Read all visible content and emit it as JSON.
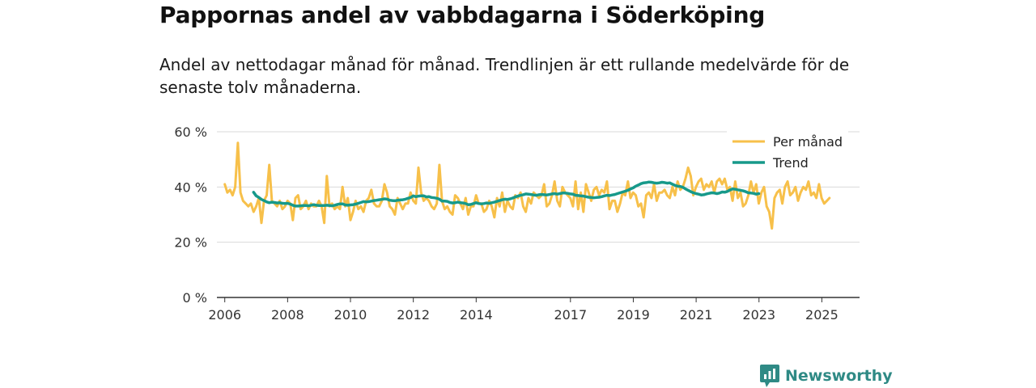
{
  "title": "Pappornas andel av vabbdagarna i Söderköping",
  "subtitle": "Andel av nettodagar månad för månad. Trendlinjen är ett rullande medelvärde för de senaste tolv månaderna.",
  "brand": "Newsworthy",
  "colors": {
    "monthly": "#f7c04a",
    "trend": "#17998a",
    "grid": "#d9d9d9",
    "axis": "#333333",
    "brand": "#2f8a85"
  },
  "chart_data": {
    "type": "line",
    "title": "Pappornas andel av vabbdagarna i Söderköping",
    "xlabel": "",
    "ylabel": "",
    "xlim": [
      2005.75,
      2026.2
    ],
    "ylim": [
      0,
      60
    ],
    "y_ticks": [
      0,
      20,
      40,
      60
    ],
    "y_tick_labels": [
      "0 %",
      "20 %",
      "40 %",
      "60 %"
    ],
    "x_ticks": [
      2006,
      2008,
      2010,
      2012,
      2014,
      2017,
      2019,
      2021,
      2023,
      2025
    ],
    "x_tick_labels": [
      "2006",
      "2008",
      "2010",
      "2012",
      "2014",
      "2017",
      "2019",
      "2021",
      "2023",
      "2025"
    ],
    "grid": true,
    "legend": "top-right",
    "series": [
      {
        "name": "Per månad",
        "start": 2006.0,
        "step": 0.0833,
        "values": [
          41,
          38,
          39,
          37,
          40,
          56,
          38,
          35,
          34,
          33,
          34,
          31,
          33,
          36,
          27,
          35,
          37,
          48,
          35,
          34,
          33,
          35,
          32,
          33,
          35,
          34,
          28,
          36,
          37,
          32,
          33,
          35,
          32,
          34,
          33,
          33,
          35,
          33,
          27,
          44,
          33,
          34,
          32,
          33,
          32,
          40,
          33,
          36,
          28,
          31,
          35,
          32,
          33,
          31,
          35,
          36,
          39,
          34,
          33,
          33,
          35,
          41,
          38,
          33,
          32,
          30,
          36,
          34,
          32,
          34,
          34,
          38,
          35,
          34,
          47,
          38,
          35,
          36,
          35,
          33,
          32,
          34,
          48,
          35,
          32,
          33,
          31,
          30,
          37,
          36,
          34,
          32,
          36,
          30,
          33,
          33,
          37,
          34,
          34,
          31,
          32,
          35,
          33,
          29,
          36,
          33,
          38,
          31,
          35,
          33,
          32,
          37,
          36,
          38,
          33,
          31,
          36,
          34,
          38,
          37,
          36,
          37,
          41,
          33,
          34,
          37,
          42,
          35,
          33,
          40,
          38,
          37,
          36,
          33,
          42,
          32,
          38,
          31,
          41,
          38,
          35,
          39,
          40,
          37,
          39,
          38,
          42,
          32,
          35,
          35,
          31,
          34,
          38,
          37,
          42,
          36,
          38,
          37,
          33,
          34,
          29,
          37,
          38,
          36,
          41,
          35,
          38,
          38,
          39,
          37,
          36,
          40,
          37,
          42,
          39,
          40,
          43,
          47,
          44,
          37,
          40,
          42,
          43,
          39,
          41,
          40,
          42,
          38,
          42,
          43,
          41,
          43,
          39,
          40,
          35,
          42,
          36,
          38,
          33,
          34,
          37,
          42,
          38,
          41,
          34,
          38,
          40,
          33,
          31,
          25,
          36,
          38,
          39,
          34,
          40,
          42,
          37,
          38,
          40,
          35,
          38,
          40,
          39,
          42,
          37,
          38,
          36,
          41,
          36,
          34,
          35,
          36
        ]
      },
      {
        "name": "Trend",
        "start": 2006.9167,
        "step": 0.0833,
        "values": [
          38.1,
          36.8,
          36.2,
          35.5,
          35.1,
          34.6,
          34.3,
          34.5,
          34.4,
          34.2,
          34.3,
          34.1,
          34.0,
          34.1,
          33.8,
          33.4,
          33.1,
          33.1,
          33.2,
          33.3,
          33.3,
          33.2,
          33.4,
          33.6,
          33.4,
          33.3,
          33.3,
          33.3,
          33.4,
          33.3,
          33.2,
          33.4,
          33.7,
          33.9,
          33.9,
          33.5,
          33.4,
          33.5,
          33.6,
          33.8,
          34.1,
          34.4,
          34.7,
          34.6,
          34.7,
          34.9,
          35.1,
          35.2,
          35.4,
          35.5,
          35.7,
          35.6,
          35.2,
          35.1,
          35.0,
          35.2,
          35.3,
          35.4,
          35.6,
          35.9,
          36.2,
          36.8,
          36.5,
          36.7,
          36.8,
          36.8,
          36.4,
          36.5,
          36.2,
          36.1,
          35.9,
          35.6,
          34.9,
          34.9,
          34.8,
          34.4,
          34.2,
          34.3,
          34.5,
          34.3,
          34.2,
          34.0,
          33.6,
          33.7,
          34.0,
          34.3,
          34.0,
          33.9,
          34.0,
          34.2,
          34.1,
          34.3,
          34.5,
          34.8,
          35.1,
          35.4,
          35.6,
          35.5,
          35.7,
          36.0,
          36.4,
          36.7,
          37.0,
          37.2,
          37.5,
          37.4,
          37.3,
          37.1,
          37.0,
          37.2,
          37.3,
          37.2,
          37.1,
          37.3,
          37.5,
          37.6,
          37.4,
          37.6,
          37.8,
          37.8,
          37.7,
          37.5,
          37.4,
          37.0,
          36.9,
          36.8,
          36.7,
          36.5,
          36.3,
          36.2,
          36.1,
          36.2,
          36.3,
          36.5,
          36.8,
          37.0,
          36.9,
          37.1,
          37.3,
          37.6,
          37.9,
          38.2,
          38.5,
          38.8,
          39.3,
          39.7,
          40.3,
          40.7,
          41.2,
          41.5,
          41.6,
          41.8,
          41.7,
          41.5,
          41.4,
          41.5,
          41.7,
          41.6,
          41.4,
          41.5,
          41.0,
          40.6,
          40.3,
          40.2,
          39.9,
          39.3,
          38.8,
          38.3,
          37.9,
          37.6,
          37.4,
          37.1,
          37.2,
          37.5,
          37.7,
          37.9,
          37.8,
          37.6,
          37.8,
          38.2,
          38.1,
          38.4,
          38.9,
          39.3,
          39.2,
          39.0,
          38.8,
          38.6,
          38.3,
          37.9,
          37.8,
          37.7,
          37.4,
          37.6
        ]
      }
    ]
  }
}
